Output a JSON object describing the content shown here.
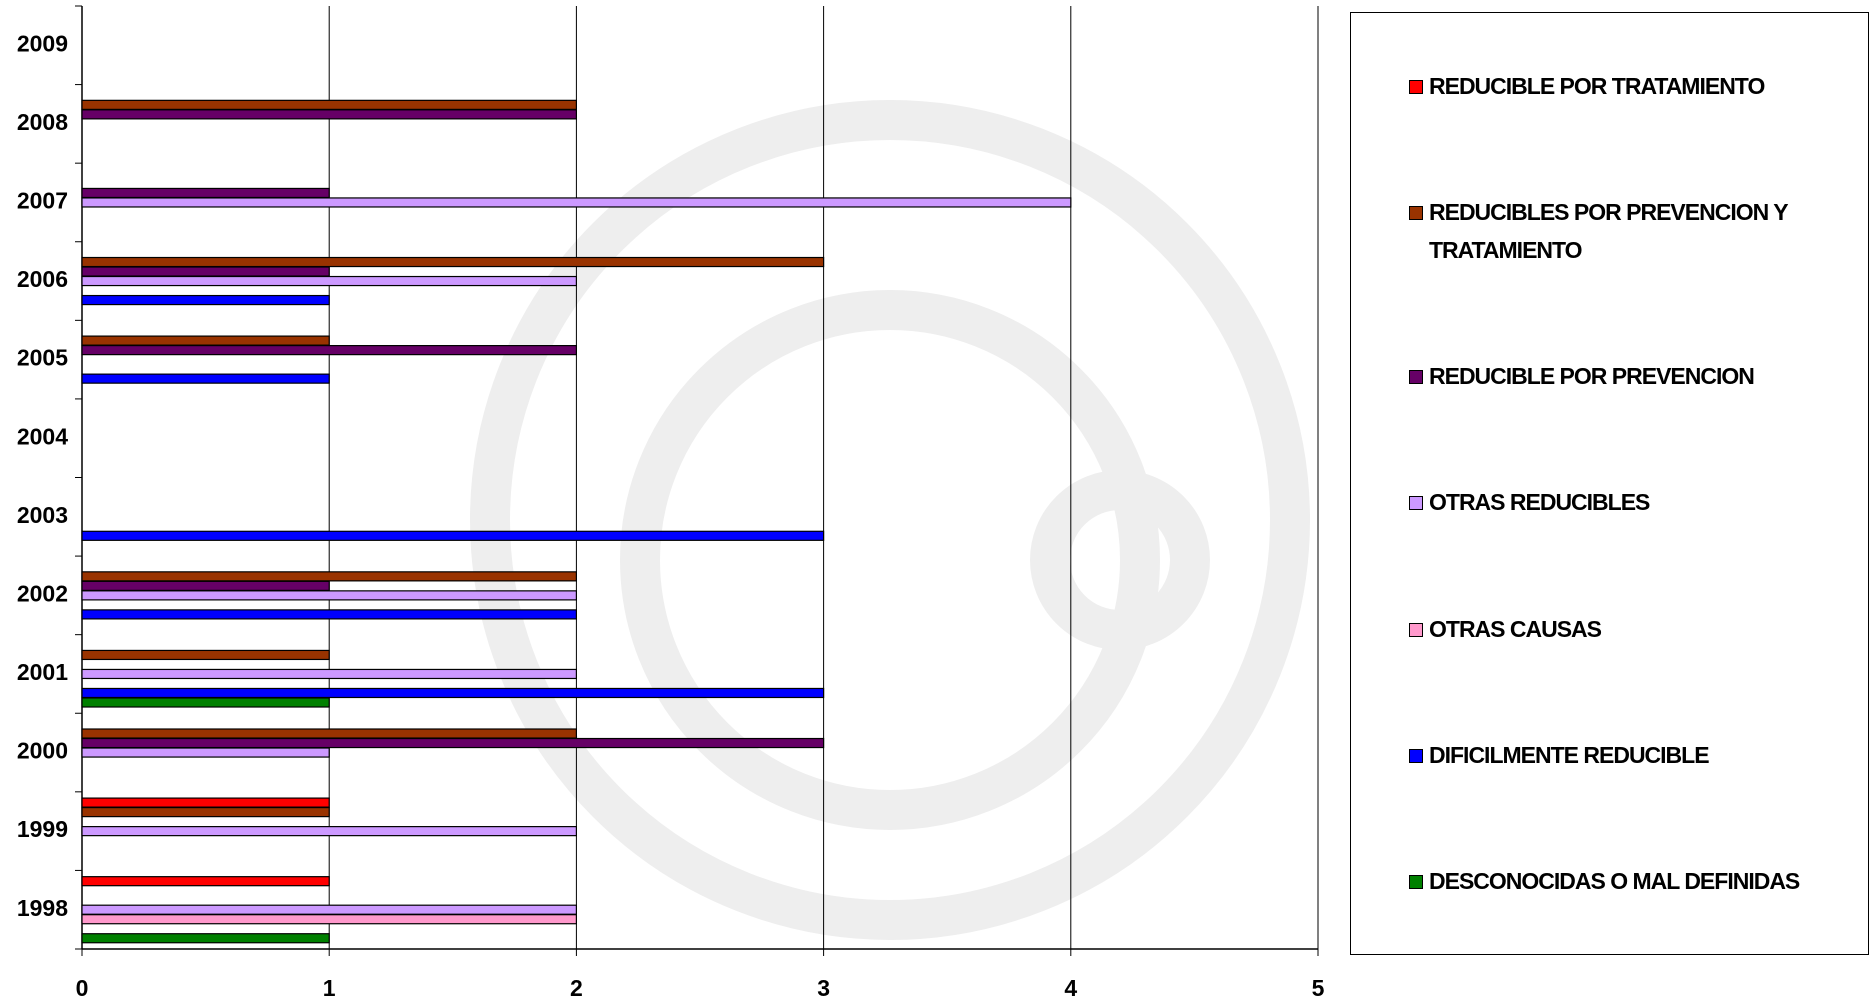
{
  "chart_data": {
    "type": "bar",
    "orientation": "horizontal",
    "categories": [
      "1998",
      "1999",
      "2000",
      "2001",
      "2002",
      "2003",
      "2004",
      "2005",
      "2006",
      "2007",
      "2008",
      "2009"
    ],
    "series": [
      {
        "name": "REDUCIBLE POR TRATAMIENTO",
        "color": "#ff0000",
        "values": [
          1,
          1,
          null,
          null,
          null,
          null,
          null,
          null,
          null,
          null,
          null,
          null
        ]
      },
      {
        "name": "REDUCIBLES POR PREVENCION Y TRATAMIENTO",
        "color": "#993300",
        "values": [
          null,
          1,
          2,
          1,
          2,
          null,
          null,
          1,
          3,
          null,
          2,
          null
        ]
      },
      {
        "name": "REDUCIBLE POR PREVENCION",
        "color": "#660066",
        "values": [
          null,
          null,
          3,
          null,
          1,
          null,
          null,
          2,
          1,
          1,
          2,
          null
        ]
      },
      {
        "name": "OTRAS REDUCIBLES",
        "color": "#cc99ff",
        "values": [
          2,
          2,
          1,
          2,
          2,
          null,
          null,
          null,
          2,
          4,
          null,
          null
        ]
      },
      {
        "name": "OTRAS CAUSAS",
        "color": "#ff99cc",
        "values": [
          2,
          null,
          null,
          null,
          null,
          null,
          null,
          null,
          null,
          null,
          null,
          null
        ]
      },
      {
        "name": "DIFICILMENTE REDUCIBLE",
        "color": "#0000ff",
        "values": [
          null,
          null,
          null,
          3,
          2,
          3,
          null,
          1,
          1,
          null,
          null,
          null
        ]
      },
      {
        "name": "DESCONOCIDAS O MAL DEFINIDAS",
        "color": "#008000",
        "values": [
          1,
          null,
          null,
          1,
          null,
          null,
          null,
          null,
          null,
          null,
          null,
          null
        ]
      }
    ],
    "xlim": [
      0,
      5
    ],
    "xticks": [
      0,
      1,
      2,
      3,
      4,
      5
    ],
    "grid": true,
    "legend": "right"
  }
}
